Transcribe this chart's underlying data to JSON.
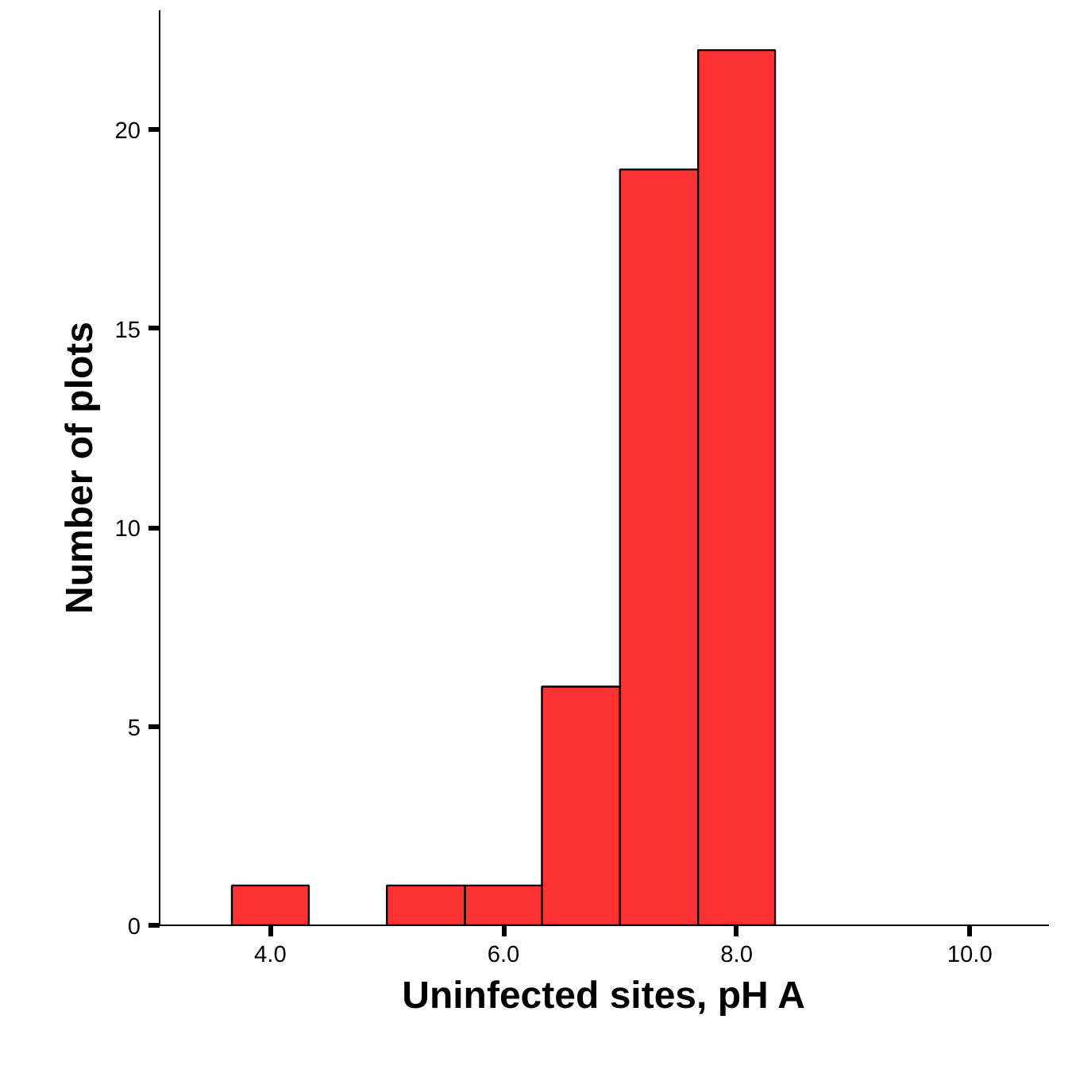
{
  "chart_data": {
    "type": "histogram",
    "xlabel": "Uninfected sites, pH A",
    "ylabel": "Number of plots",
    "bins": [
      3.67,
      4.33,
      5.0,
      5.67,
      6.33,
      7.0,
      7.67,
      8.33
    ],
    "values": [
      1,
      0,
      1,
      1,
      6,
      19,
      22
    ],
    "color": "#ff3333",
    "xlim": [
      3.05,
      10.68
    ],
    "ylim": [
      0,
      23
    ],
    "xticks": [
      {
        "value": 4,
        "label": "4.0"
      },
      {
        "value": 6,
        "label": "6.0"
      },
      {
        "value": 8,
        "label": "8.0"
      },
      {
        "value": 10,
        "label": "10.0"
      }
    ],
    "yticks": [
      0,
      5,
      10,
      15,
      20
    ],
    "grid": false
  }
}
